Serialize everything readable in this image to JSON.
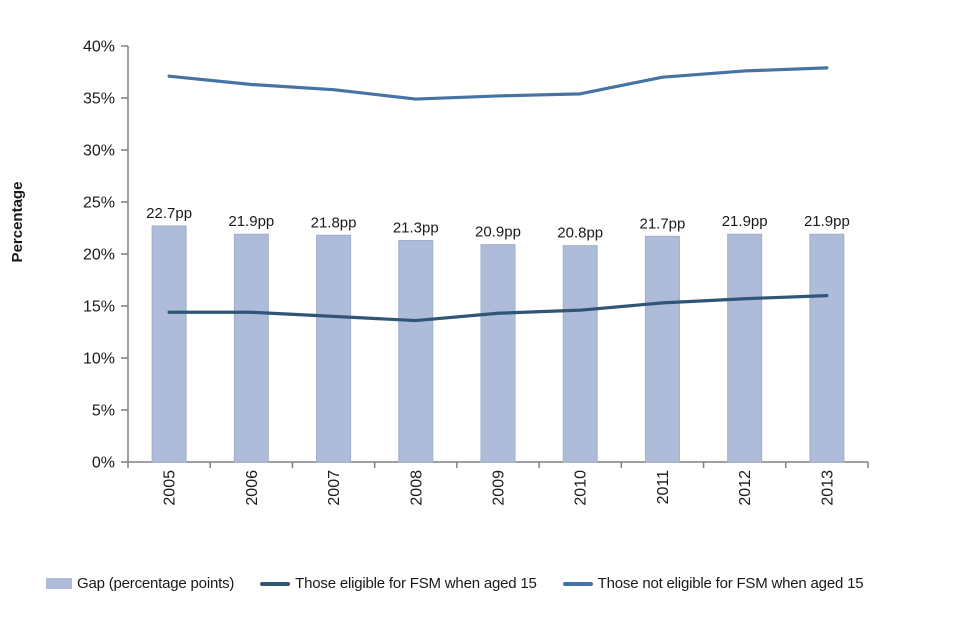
{
  "chart_data": {
    "type": "bar",
    "title": "",
    "xlabel": "",
    "ylabel": "Percentage",
    "ylim": [
      0,
      40
    ],
    "ytick_step": 5,
    "ytick_labels": [
      "0%",
      "5%",
      "10%",
      "15%",
      "20%",
      "25%",
      "30%",
      "35%",
      "40%"
    ],
    "grid": false,
    "legend_position": "bottom",
    "axis_color": "#808080",
    "text_color": "#1a1a1a",
    "categories": [
      "2005",
      "2006",
      "2007",
      "2008",
      "2009",
      "2010",
      "2011",
      "2012",
      "2013"
    ],
    "series": [
      {
        "key": "gap",
        "name": "Gap (percentage points)",
        "type": "bar",
        "color": "#AEBCDA",
        "border_color": "#9FAECB",
        "values": [
          22.7,
          21.9,
          21.8,
          21.3,
          20.9,
          20.8,
          21.7,
          21.9,
          21.9
        ],
        "bar_labels": [
          "22.7pp",
          "21.9pp",
          "21.8pp",
          "21.3pp",
          "20.9pp",
          "20.8pp",
          "21.7pp",
          "21.9pp",
          "21.9pp"
        ]
      },
      {
        "key": "fsm-eligible",
        "name": "Those eligible for FSM when aged 15",
        "type": "line",
        "color": "#2F5577",
        "values": [
          14.4,
          14.4,
          14.0,
          13.6,
          14.3,
          14.6,
          15.3,
          15.7,
          16.0
        ]
      },
      {
        "key": "fsm-not-eligible",
        "name": "Those not eligible for FSM when aged 15",
        "type": "line",
        "color": "#4573A3",
        "values": [
          37.1,
          36.3,
          35.8,
          34.9,
          35.2,
          35.4,
          37.0,
          37.6,
          37.9
        ]
      }
    ]
  }
}
